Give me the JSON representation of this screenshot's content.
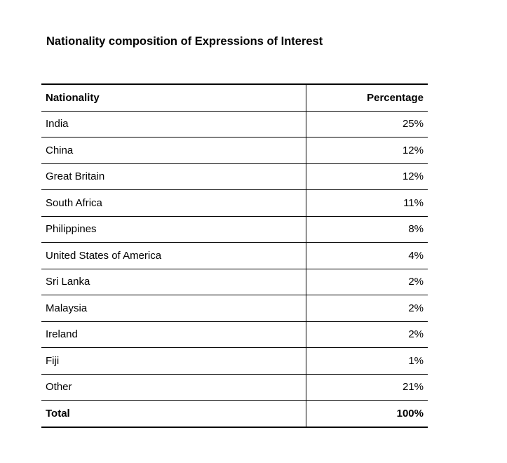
{
  "document": {
    "title": "Nationality composition of Expressions of Interest"
  },
  "table": {
    "headers": {
      "nationality": "Nationality",
      "percentage": "Percentage"
    },
    "rows": [
      {
        "nationality": "India",
        "percentage": "25%"
      },
      {
        "nationality": "China",
        "percentage": "12%"
      },
      {
        "nationality": "Great Britain",
        "percentage": "12%"
      },
      {
        "nationality": "South Africa",
        "percentage": "11%"
      },
      {
        "nationality": "Philippines",
        "percentage": "8%"
      },
      {
        "nationality": "United States of America",
        "percentage": "4%"
      },
      {
        "nationality": "Sri Lanka",
        "percentage": "2%"
      },
      {
        "nationality": "Malaysia",
        "percentage": "2%"
      },
      {
        "nationality": "Ireland",
        "percentage": "2%"
      },
      {
        "nationality": "Fiji",
        "percentage": "1%"
      },
      {
        "nationality": "Other",
        "percentage": "21%"
      }
    ],
    "total": {
      "label": "Total",
      "percentage": "100%"
    }
  }
}
